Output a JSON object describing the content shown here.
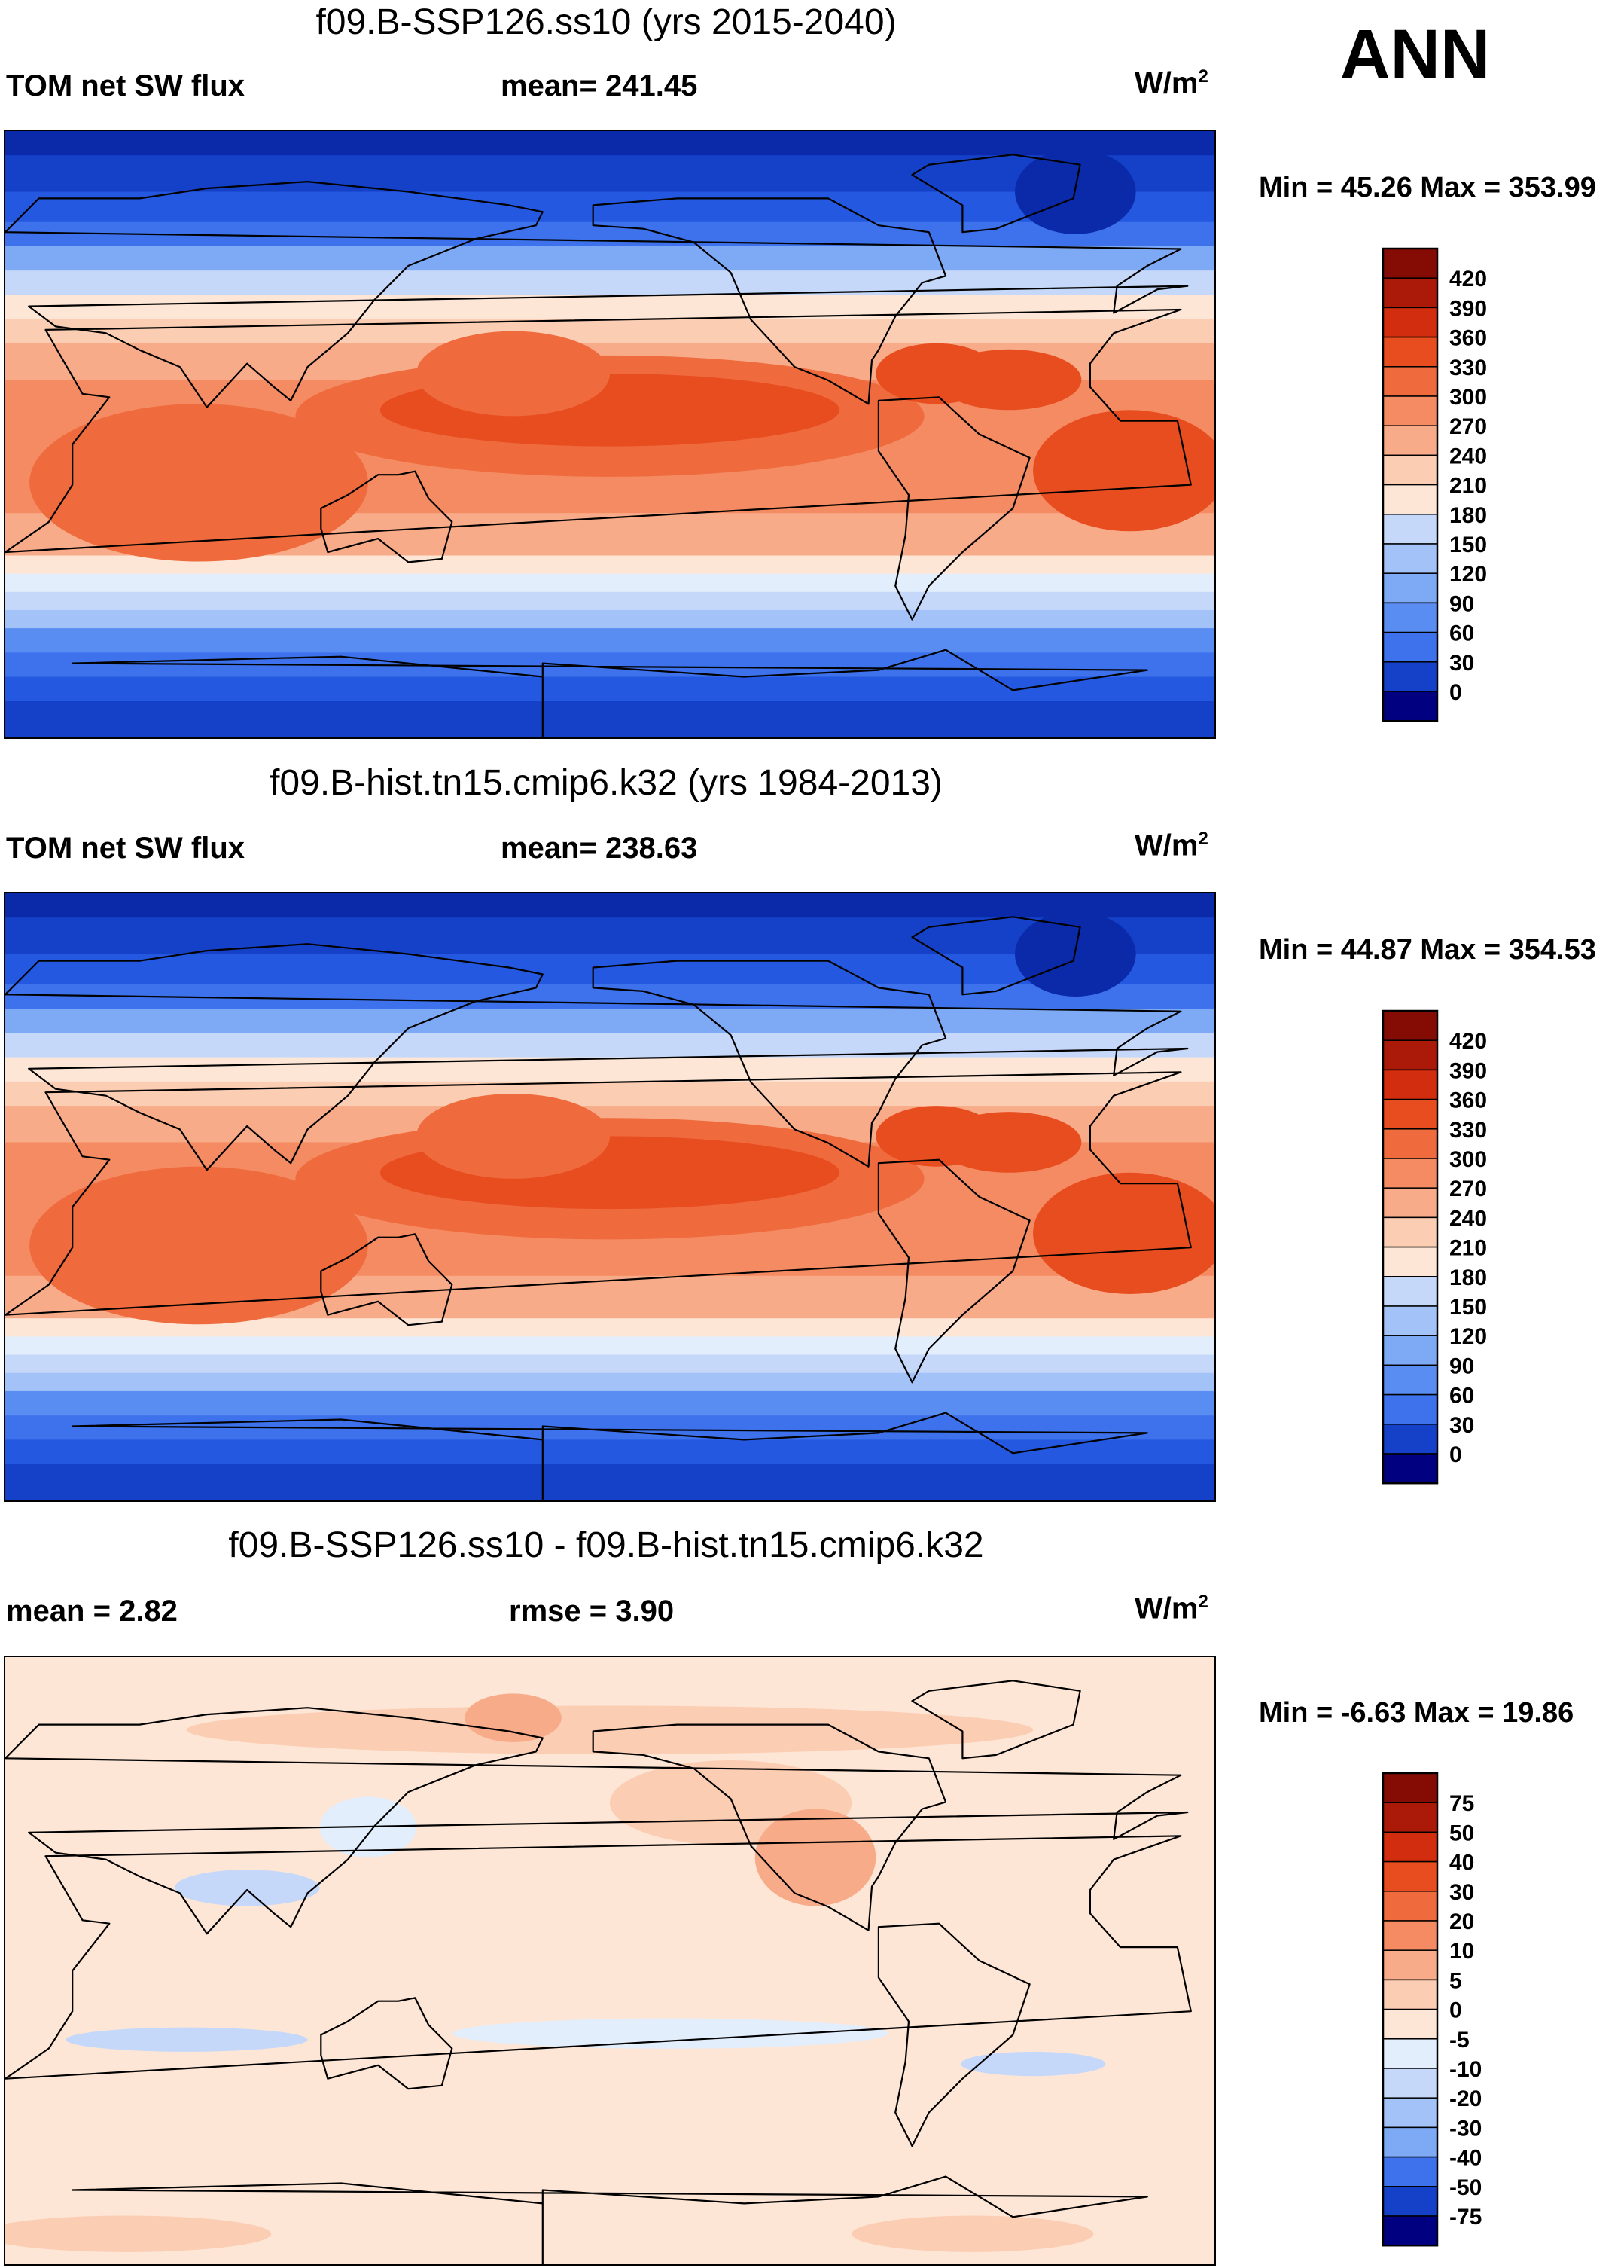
{
  "season": "ANN",
  "colors": {
    "contour_ramp": [
      "#000080",
      "#0a2aa9",
      "#1541c9",
      "#2458e0",
      "#3d72ec",
      "#5a8df2",
      "#7ea9f5",
      "#a3c2f7",
      "#c6d8fa",
      "#e3eefc",
      "#fde6d6",
      "#fbcdb3",
      "#f8ab88",
      "#f48b62",
      "#ef6a3d",
      "#e84d20",
      "#d22d0f",
      "#ab1a08",
      "#850c04"
    ],
    "coast": "#000000"
  },
  "panels": [
    {
      "id": "test",
      "title": "f09.B-SSP126.ss10 (yrs 2015-2040)",
      "left_label": "TOM net SW flux",
      "center_label": "mean= 241.45",
      "units": "W/m",
      "units_sup": "2",
      "minmax": "Min =  45.26 Max = 353.99",
      "colorbar": {
        "labels": [
          "420",
          "390",
          "360",
          "330",
          "300",
          "270",
          "240",
          "210",
          "180",
          "150",
          "120",
          "90",
          "60",
          "30",
          "0"
        ],
        "colors": [
          "#850c04",
          "#ab1a08",
          "#d22d0f",
          "#e84d20",
          "#ef6a3d",
          "#f48b62",
          "#f8ab88",
          "#fbcdb3",
          "#fde6d6",
          "#c6d8fa",
          "#a3c2f7",
          "#7ea9f5",
          "#5a8df2",
          "#3d72ec",
          "#1541c9",
          "#000080"
        ]
      },
      "field": "abs"
    },
    {
      "id": "ctrl",
      "title": "f09.B-hist.tn15.cmip6.k32 (yrs 1984-2013)",
      "left_label": "TOM net SW flux",
      "center_label": "mean= 238.63",
      "units": "W/m",
      "units_sup": "2",
      "minmax": "Min =  44.87 Max = 354.53",
      "colorbar": {
        "labels": [
          "420",
          "390",
          "360",
          "330",
          "300",
          "270",
          "240",
          "210",
          "180",
          "150",
          "120",
          "90",
          "60",
          "30",
          "0"
        ],
        "colors": [
          "#850c04",
          "#ab1a08",
          "#d22d0f",
          "#e84d20",
          "#ef6a3d",
          "#f48b62",
          "#f8ab88",
          "#fbcdb3",
          "#fde6d6",
          "#c6d8fa",
          "#a3c2f7",
          "#7ea9f5",
          "#5a8df2",
          "#3d72ec",
          "#1541c9",
          "#000080"
        ]
      },
      "field": "abs"
    },
    {
      "id": "diff",
      "title": "f09.B-SSP126.ss10 - f09.B-hist.tn15.cmip6.k32",
      "left_label": "mean =   2.82",
      "center_label": "rmse =   3.90",
      "units": "W/m",
      "units_sup": "2",
      "minmax": "Min =  -6.63 Max =  19.86",
      "colorbar": {
        "labels": [
          "75",
          "50",
          "40",
          "30",
          "20",
          "10",
          "5",
          "0",
          "-5",
          "-10",
          "-20",
          "-30",
          "-40",
          "-50",
          "-75"
        ],
        "colors": [
          "#850c04",
          "#ab1a08",
          "#d22d0f",
          "#e84d20",
          "#ef6a3d",
          "#f48b62",
          "#f8ab88",
          "#fbcdb3",
          "#fde6d6",
          "#e3eefc",
          "#c6d8fa",
          "#a3c2f7",
          "#7ea9f5",
          "#3d72ec",
          "#1541c9",
          "#000080"
        ]
      },
      "field": "diff"
    }
  ]
}
